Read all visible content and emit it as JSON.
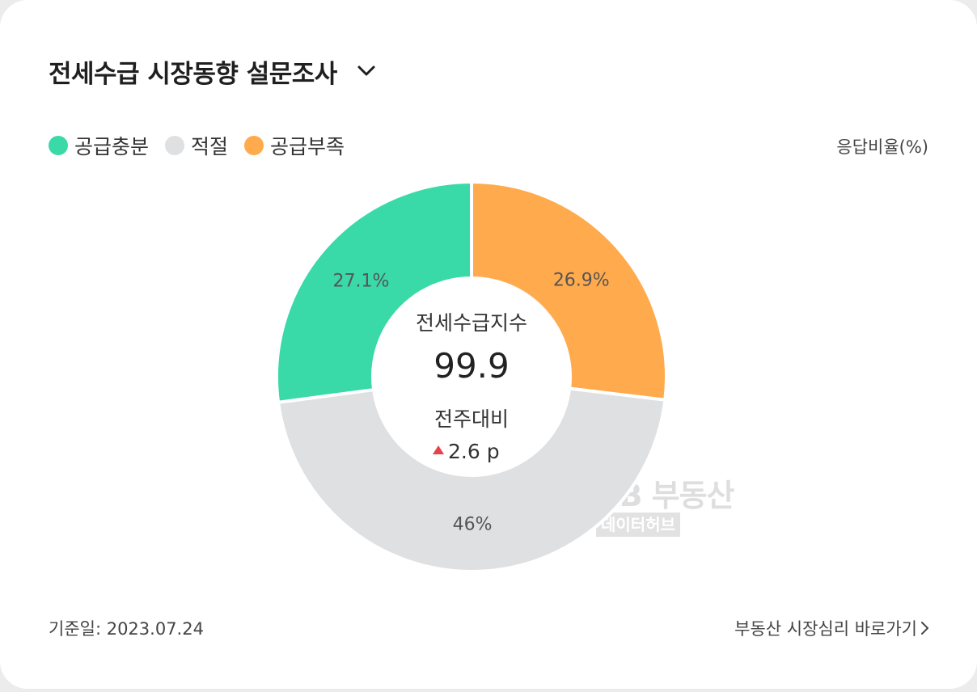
{
  "header": {
    "title": "전세수급 시장동향 설문조사",
    "dropdown_icon": "chevron-down-icon"
  },
  "unit_label": "응답비율(%)",
  "chart_data": {
    "type": "pie",
    "variant": "donut",
    "legend_placement": "top-left",
    "series": [
      {
        "name": "공급충분",
        "value": 27.1,
        "label": "27.1%",
        "color": "#3ad9a8"
      },
      {
        "name": "적절",
        "value": 46,
        "label": "46%",
        "color": "#dfe0e2"
      },
      {
        "name": "공급부족",
        "value": 26.9,
        "label": "26.9%",
        "color": "#ffaa4c"
      }
    ],
    "center": {
      "title": "전세수급지수",
      "value": "99.9",
      "change_label": "전주대비",
      "change_value": "2.6 p",
      "change_direction": "up",
      "change_color": "#e8414a"
    }
  },
  "watermark": {
    "brand": "KB 부동산",
    "sub": "데이터허브"
  },
  "footer": {
    "date_label": "기준일: 2023.07.24",
    "link_label": "부동산 시장심리 바로가기"
  }
}
